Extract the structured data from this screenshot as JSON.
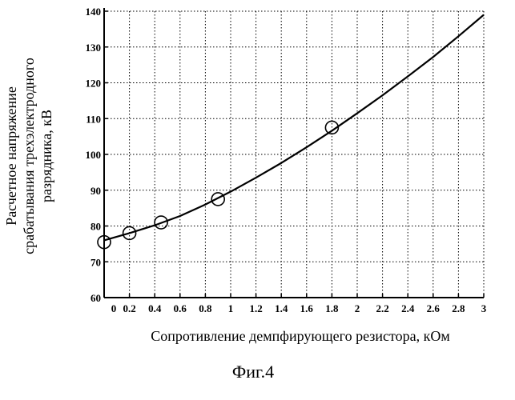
{
  "chart_data": {
    "type": "scatter",
    "title": "",
    "xlabel": "Сопротивление демпфирующего резистора, кОм",
    "ylabel_lines": [
      "Расчетное напряжение",
      "срабатывания трехэлектродного",
      "разрядника, кВ"
    ],
    "xlim": [
      0,
      3
    ],
    "ylim": [
      60,
      140
    ],
    "x_ticks": [
      "0",
      "0.2",
      "0.4",
      "0.6",
      "0.8",
      "1",
      "1.2",
      "1.4",
      "1.6",
      "1.8",
      "2",
      "2.2",
      "2.4",
      "2.6",
      "2.8",
      "3"
    ],
    "y_ticks": [
      "60",
      "70",
      "80",
      "90",
      "100",
      "110",
      "120",
      "130",
      "140"
    ],
    "grid": true,
    "series": [
      {
        "kind": "markers",
        "marker": "circle",
        "x": [
          0,
          0.2,
          0.45,
          0.9,
          1.8
        ],
        "y": [
          75.5,
          78,
          81,
          87.5,
          107.5
        ]
      },
      {
        "kind": "line",
        "x": [
          0,
          0.2,
          0.4,
          0.6,
          0.8,
          1.0,
          1.2,
          1.4,
          1.6,
          1.8,
          2.0,
          2.2,
          2.4,
          2.6,
          2.8,
          3.0
        ],
        "y": [
          76,
          78,
          80.2,
          82.8,
          86,
          89.6,
          93.5,
          97.6,
          102,
          106.6,
          111.5,
          116.5,
          121.8,
          127.2,
          133,
          139
        ]
      }
    ]
  },
  "caption": "Фиг.4"
}
